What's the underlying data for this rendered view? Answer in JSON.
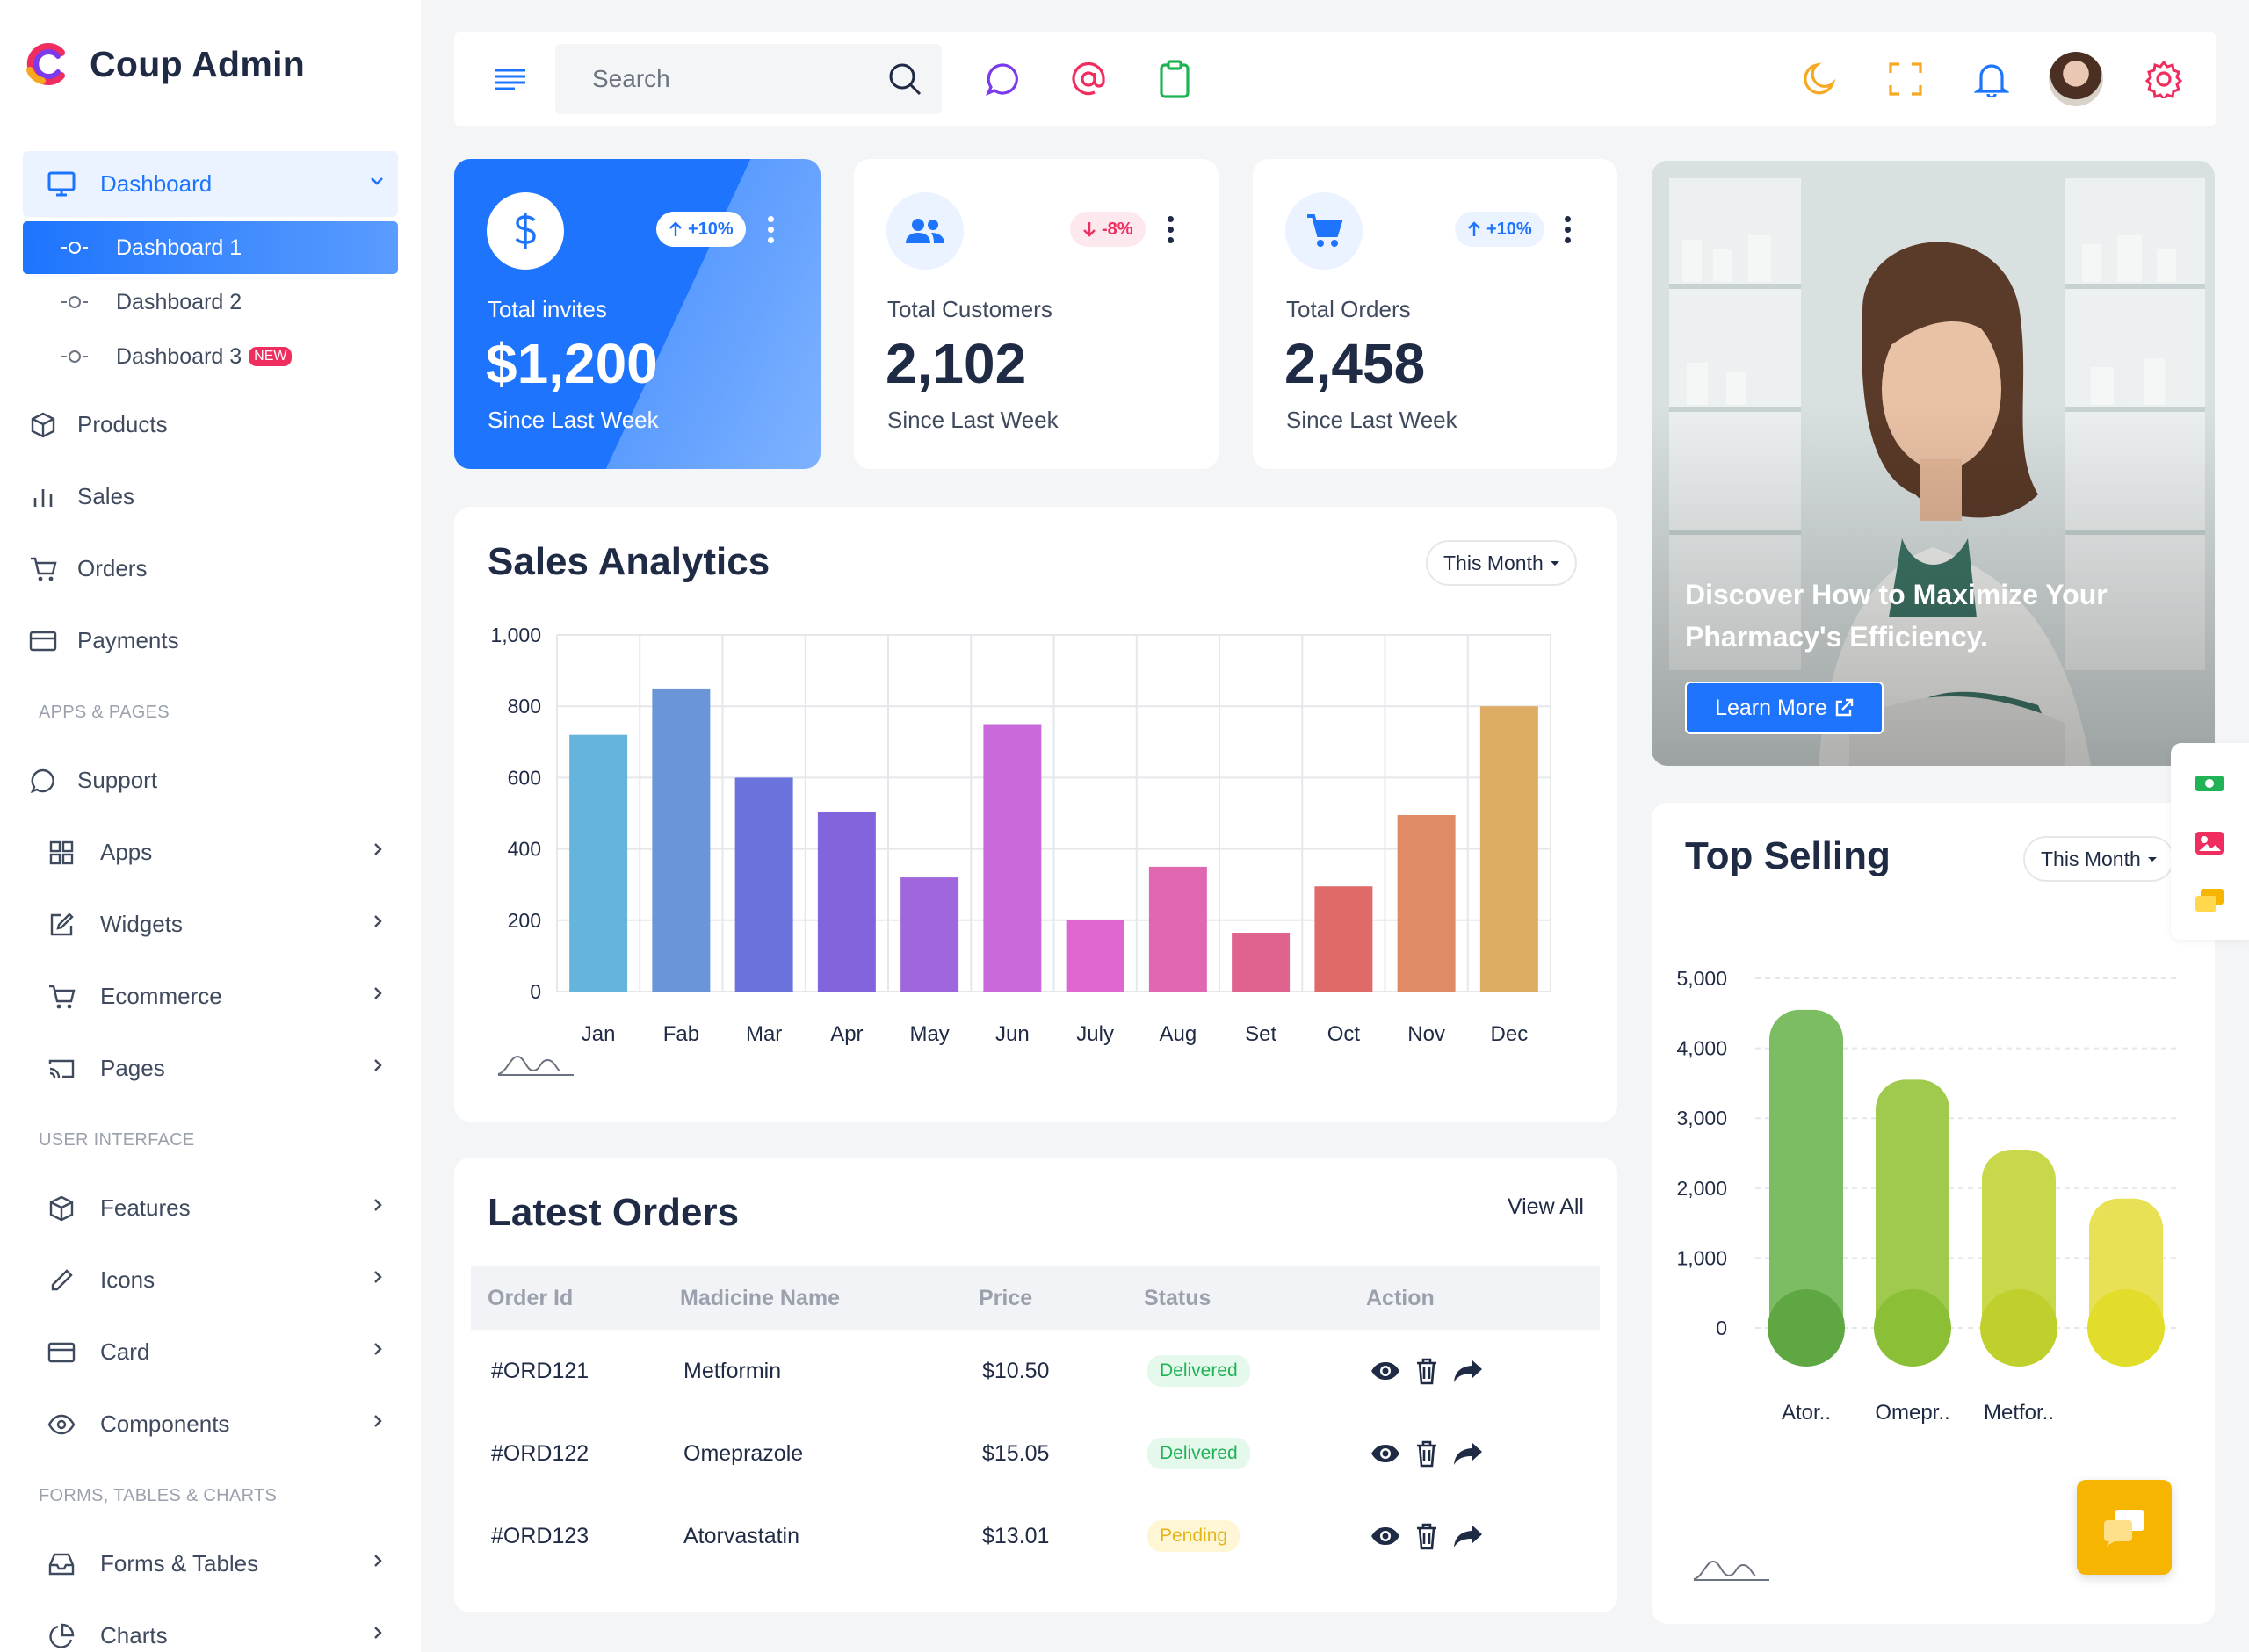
{
  "app": {
    "name": "Coup Admin"
  },
  "sidebar": {
    "dashboard": {
      "label": "Dashboard",
      "children": [
        {
          "label": "Dashboard 1"
        },
        {
          "label": "Dashboard 2"
        },
        {
          "label": "Dashboard 3",
          "badge": "NEW"
        }
      ]
    },
    "main_items": [
      {
        "label": "Products",
        "icon": "box-icon"
      },
      {
        "label": "Sales",
        "icon": "bar-chart-icon"
      },
      {
        "label": "Orders",
        "icon": "cart-icon"
      },
      {
        "label": "Payments",
        "icon": "credit-card-icon"
      }
    ],
    "sections": [
      {
        "label": "APPS & PAGES",
        "items": [
          {
            "label": "Support",
            "icon": "chat-icon"
          },
          {
            "label": "Apps",
            "icon": "grid-icon"
          },
          {
            "label": "Widgets",
            "icon": "edit-icon"
          },
          {
            "label": "Ecommerce",
            "icon": "cart-icon"
          },
          {
            "label": "Pages",
            "icon": "cast-icon"
          }
        ]
      },
      {
        "label": "USER INTERFACE",
        "items": [
          {
            "label": "Features",
            "icon": "box-icon"
          },
          {
            "label": "Icons",
            "icon": "pencil-icon"
          },
          {
            "label": "Card",
            "icon": "credit-card-icon"
          },
          {
            "label": "Components",
            "icon": "eye-icon"
          }
        ]
      },
      {
        "label": "FORMS, TABLES & CHARTS",
        "items": [
          {
            "label": "Forms & Tables",
            "icon": "inbox-icon"
          },
          {
            "label": "Charts",
            "icon": "pie-chart-icon"
          }
        ]
      }
    ]
  },
  "topbar": {
    "search_placeholder": "Search"
  },
  "stats": [
    {
      "title": "Total invites",
      "value": "$1,200",
      "sub": "Since Last Week",
      "change": "+10%",
      "trend": "up",
      "icon": "dollar-icon"
    },
    {
      "title": "Total Customers",
      "value": "2,102",
      "sub": "Since Last Week",
      "change": "-8%",
      "trend": "down",
      "icon": "users-icon"
    },
    {
      "title": "Total Orders",
      "value": "2,458",
      "sub": "Since Last Week",
      "change": "+10%",
      "trend": "up",
      "icon": "cart-icon"
    }
  ],
  "sales": {
    "title": "Sales Analytics",
    "filter": "This Month"
  },
  "promo": {
    "heading": "Discover How to Maximize Your Pharmacy's Efficiency.",
    "button": "Learn More"
  },
  "top_selling": {
    "title": "Top Selling",
    "filter": "This Month"
  },
  "orders": {
    "title": "Latest Orders",
    "view_all": "View All",
    "columns": [
      "Order Id",
      "Madicine Name",
      "Price",
      "Status",
      "Action"
    ],
    "rows": [
      {
        "id": "#ORD121",
        "name": "Metformin",
        "price": "$10.50",
        "status": "Delivered"
      },
      {
        "id": "#ORD122",
        "name": "Omeprazole",
        "price": "$15.05",
        "status": "Delivered"
      },
      {
        "id": "#ORD123",
        "name": "Atorvastatin",
        "price": "$13.01",
        "status": "Pending"
      }
    ]
  },
  "chart_data": [
    {
      "type": "bar",
      "categories": [
        "Jan",
        "Fab",
        "Mar",
        "Apr",
        "May",
        "Jun",
        "July",
        "Aug",
        "Set",
        "Oct",
        "Nov",
        "Dec"
      ],
      "values": [
        720,
        850,
        600,
        505,
        320,
        750,
        200,
        350,
        165,
        295,
        495,
        800
      ],
      "colors": [
        "#66b3dd",
        "#6a95d8",
        "#6a72dc",
        "#8264dc",
        "#a067dc",
        "#c86ad9",
        "#e066d0",
        "#e067b0",
        "#e0628f",
        "#e06a6a",
        "#e08a66",
        "#dcad63"
      ],
      "ylim": [
        0,
        1000
      ],
      "yticks": [
        "0",
        "200",
        "400",
        "600",
        "800",
        "1,000"
      ],
      "grid": true
    },
    {
      "type": "bar",
      "categories": [
        "Ator..",
        "Omepr..",
        "Metfor..",
        ""
      ],
      "values": [
        4550,
        3550,
        2550,
        1850
      ],
      "colors": [
        "#7cbd63",
        "#a0ca4e",
        "#c9d74a",
        "#e8e055"
      ],
      "base_colors": [
        "#5fa743",
        "#8bbf35",
        "#bfcf2b",
        "#e2dc2a"
      ],
      "ylim": [
        0,
        5000
      ],
      "yticks": [
        "0",
        "1,000",
        "2,000",
        "3,000",
        "4,000",
        "5,000"
      ],
      "grid": true
    }
  ]
}
